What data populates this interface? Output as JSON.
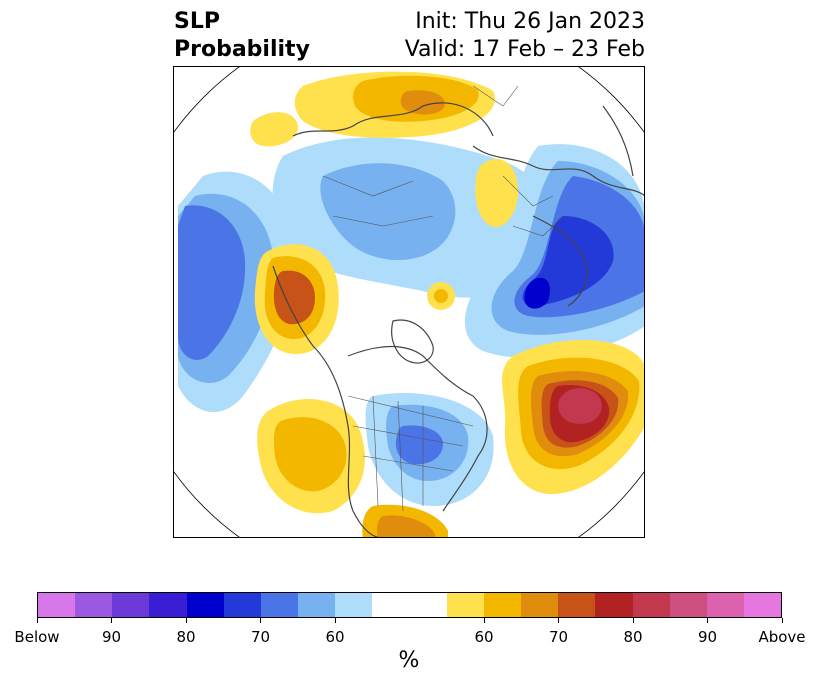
{
  "title": {
    "variable": "SLP",
    "product": "Probability",
    "init": "Init: Thu 26 Jan 2023",
    "valid": "Valid: 17 Feb – 23 Feb"
  },
  "map": {
    "projection": "north-polar-stereographic",
    "features": [
      "coastlines",
      "country-borders",
      "state-borders"
    ],
    "anomalies": [
      {
        "region": "North Atlantic",
        "category": "above",
        "peak_percent": 80
      },
      {
        "region": "Alaska / NE Pacific",
        "category": "above",
        "peak_percent": 70
      },
      {
        "region": "Southwest US / Mexico",
        "category": "above",
        "peak_percent": 65
      },
      {
        "region": "Scandinavia / Barents",
        "category": "above",
        "peak_percent": 65
      },
      {
        "region": "Eastern Siberia",
        "category": "above",
        "peak_percent": 55
      },
      {
        "region": "Western Europe / Iberia",
        "category": "below",
        "peak_percent": 85
      },
      {
        "region": "North Pacific",
        "category": "below",
        "peak_percent": 65
      },
      {
        "region": "Great Lakes / Eastern US",
        "category": "below",
        "peak_percent": 65
      },
      {
        "region": "Siberia / Arctic",
        "category": "below",
        "peak_percent": 60
      }
    ]
  },
  "colorbar": {
    "colors": [
      "#d877e9",
      "#9b58e0",
      "#6b3ad8",
      "#3a1ed3",
      "#0000cd",
      "#2339d8",
      "#4b74e6",
      "#77b1ef",
      "#aedcfb",
      "#ffffff",
      "#ffffff",
      "#ffe14d",
      "#f3b700",
      "#e08d0e",
      "#c75318",
      "#b22222",
      "#c2384f",
      "#cc4f7f",
      "#dc62b0",
      "#e677e1"
    ],
    "ticks": [
      "Below",
      "90",
      "80",
      "70",
      "60",
      "60",
      "70",
      "80",
      "90",
      "Above"
    ],
    "unit": "%"
  }
}
